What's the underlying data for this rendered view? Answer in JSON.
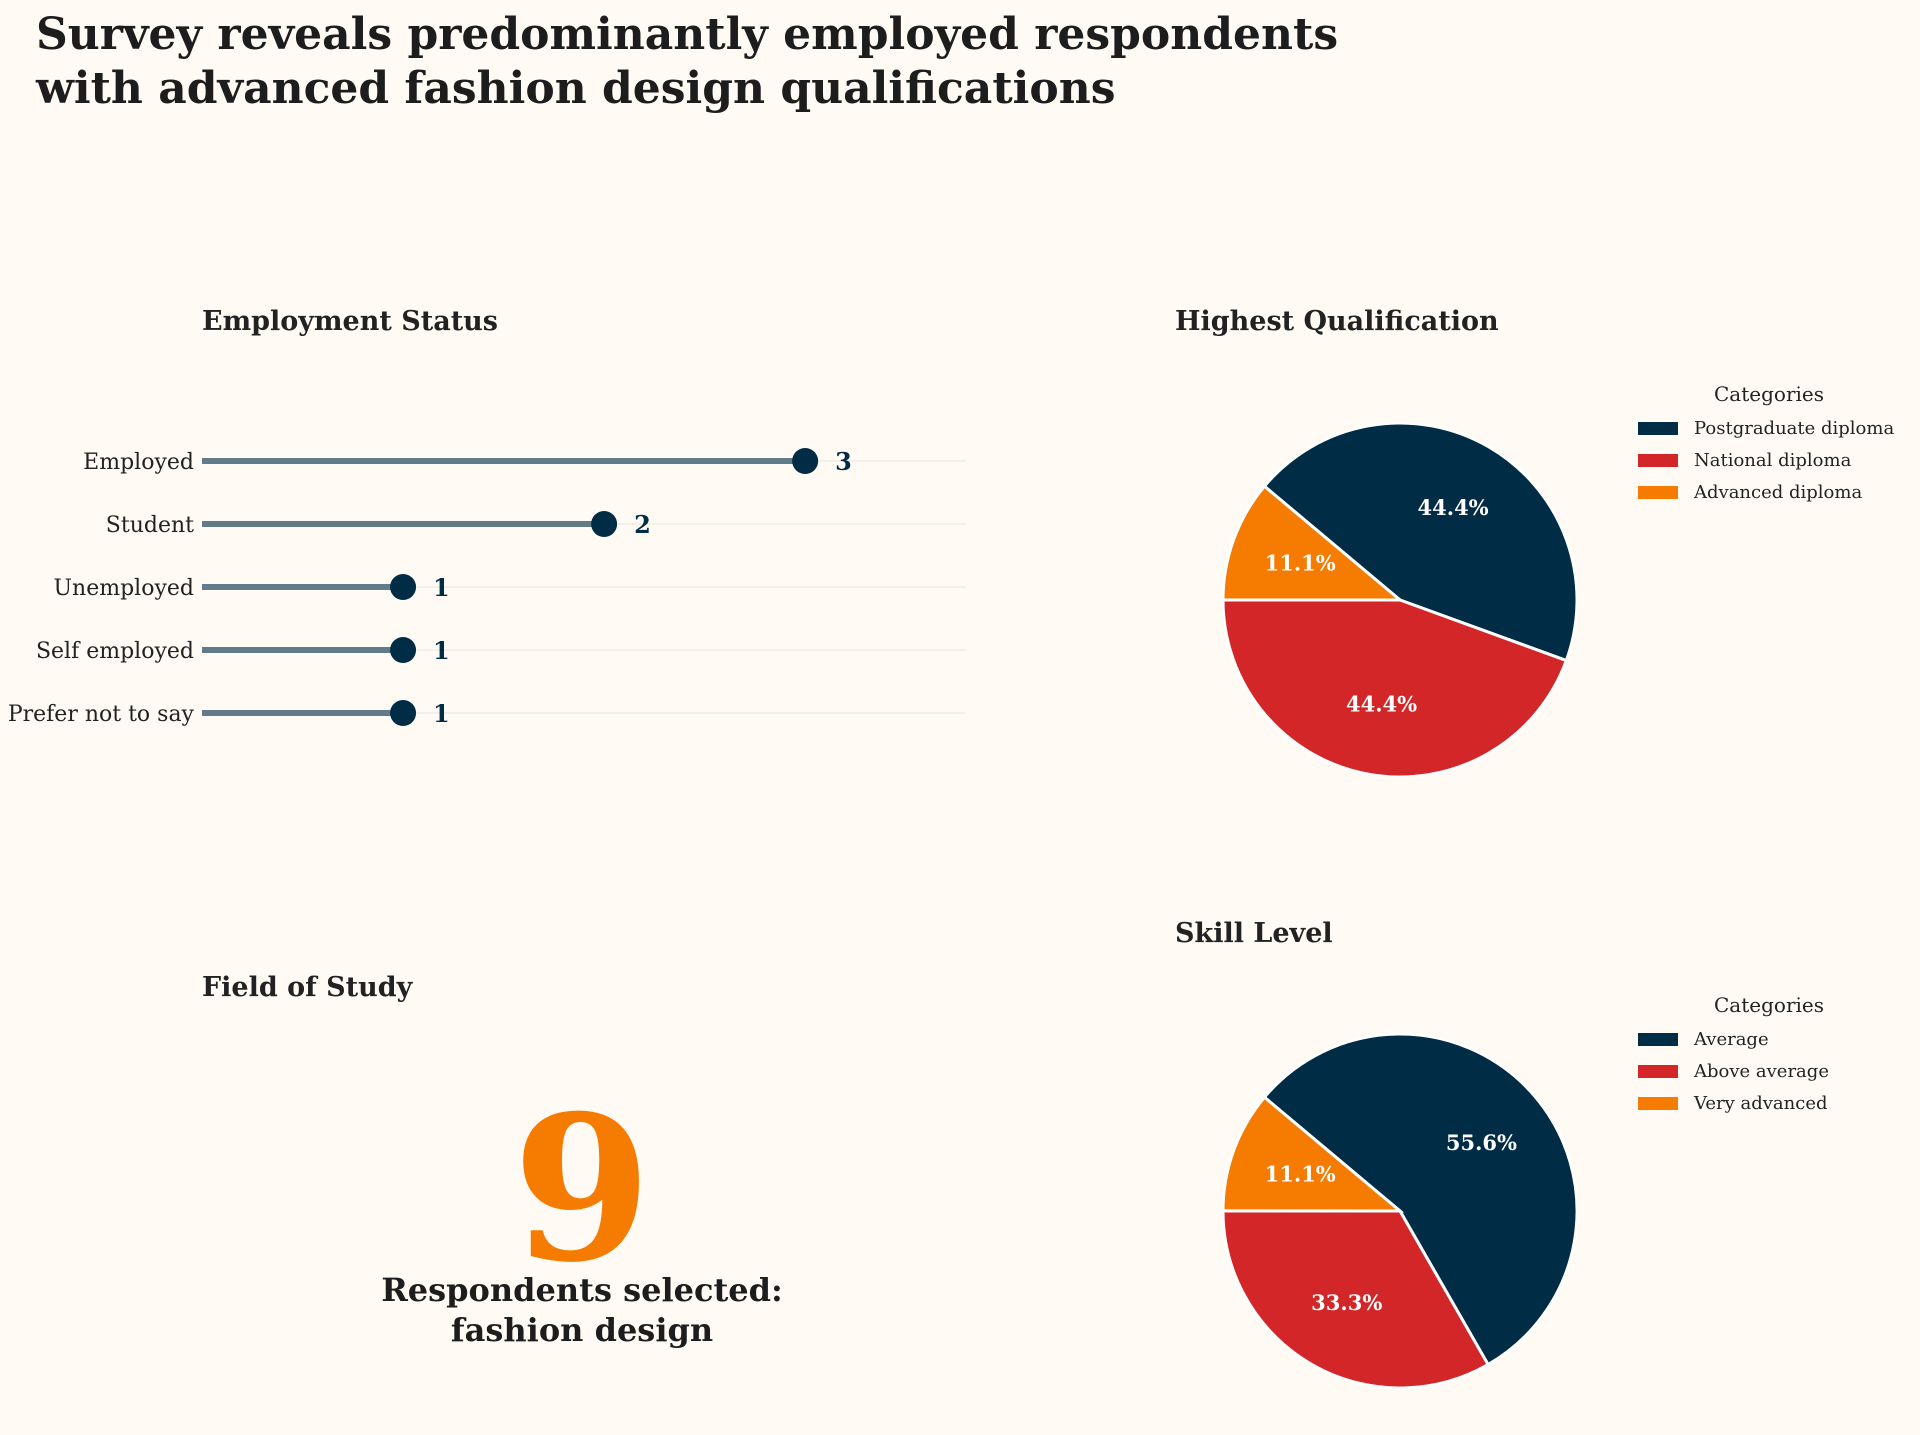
{
  "title": "Survey reveals predominantly employed respondents\nwith advanced fashion design qualifications",
  "colors": {
    "background": "#fffbf4",
    "navy": "#002c46",
    "red": "#d32628",
    "orange": "#f57c00",
    "stem": "#617b88",
    "grid": "#e8e4dc"
  },
  "chart_data": [
    {
      "type": "lollipop",
      "title": "Employment Status",
      "categories": [
        "Employed",
        "Student",
        "Unemployed",
        "Self employed",
        "Prefer not to say"
      ],
      "values": [
        3,
        2,
        1,
        1,
        1
      ],
      "xlim": [
        0,
        3.8
      ]
    },
    {
      "type": "pie",
      "title": "Highest Qualification",
      "legend_title": "Categories",
      "labels": [
        "Postgraduate diploma",
        "National diploma",
        "Advanced diploma"
      ],
      "values": [
        44.4,
        44.4,
        11.1
      ],
      "value_labels": [
        "44.4%",
        "44.4%",
        "11.1%"
      ],
      "colors": [
        "#002c46",
        "#d32628",
        "#f57c00"
      ]
    },
    {
      "type": "pie",
      "title": "Skill Level",
      "legend_title": "Categories",
      "labels": [
        "Average",
        "Above average",
        "Very advanced"
      ],
      "values": [
        55.6,
        33.3,
        11.1
      ],
      "value_labels": [
        "55.6%",
        "33.3%",
        "11.1%"
      ],
      "colors": [
        "#002c46",
        "#d32628",
        "#f57c00"
      ]
    }
  ],
  "field_of_study": {
    "title": "Field of Study",
    "count": "9",
    "caption": "Respondents selected:\nfashion design"
  }
}
